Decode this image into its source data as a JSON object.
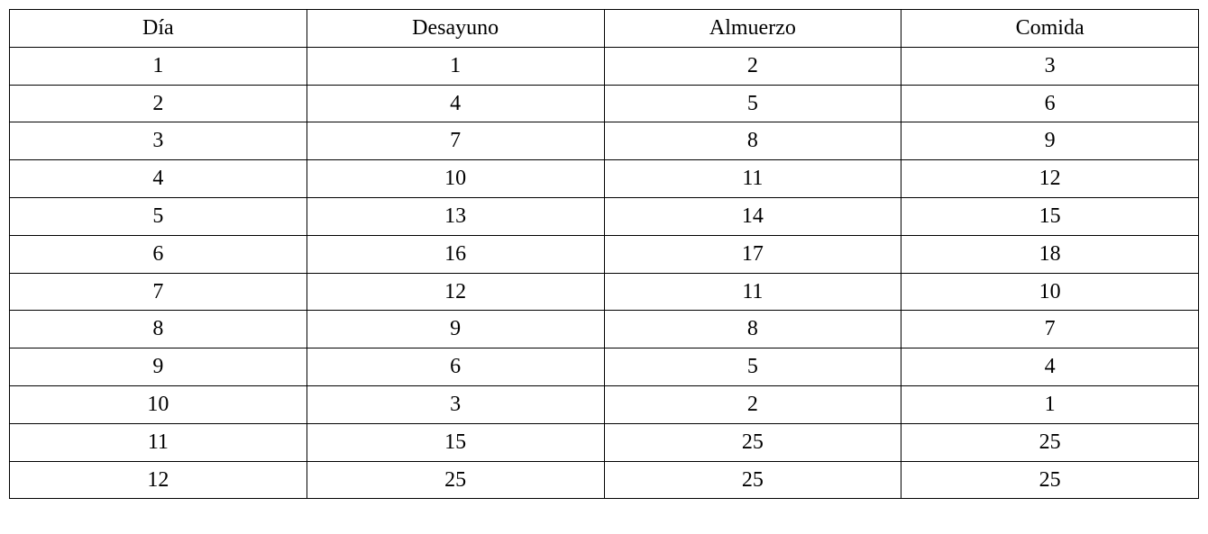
{
  "table": {
    "columns": [
      "Día",
      "Desayuno",
      "Almuerzo",
      "Comida"
    ],
    "rows": [
      [
        "1",
        "1",
        "2",
        "3"
      ],
      [
        "2",
        "4",
        "5",
        "6"
      ],
      [
        "3",
        "7",
        "8",
        "9"
      ],
      [
        "4",
        "10",
        "11",
        "12"
      ],
      [
        "5",
        "13",
        "14",
        "15"
      ],
      [
        "6",
        "16",
        "17",
        "18"
      ],
      [
        "7",
        "12",
        "11",
        "10"
      ],
      [
        "8",
        "9",
        "8",
        "7"
      ],
      [
        "9",
        "6",
        "5",
        "4"
      ],
      [
        "10",
        "3",
        "2",
        "1"
      ],
      [
        "11",
        "15",
        "25",
        "25"
      ],
      [
        "12",
        "25",
        "25",
        "25"
      ]
    ],
    "column_widths_pct": [
      25,
      25,
      25,
      25
    ],
    "font_family": "Times New Roman",
    "font_size_pt": 18,
    "border_color": "#000000",
    "background_color": "#ffffff",
    "text_align": "center"
  }
}
